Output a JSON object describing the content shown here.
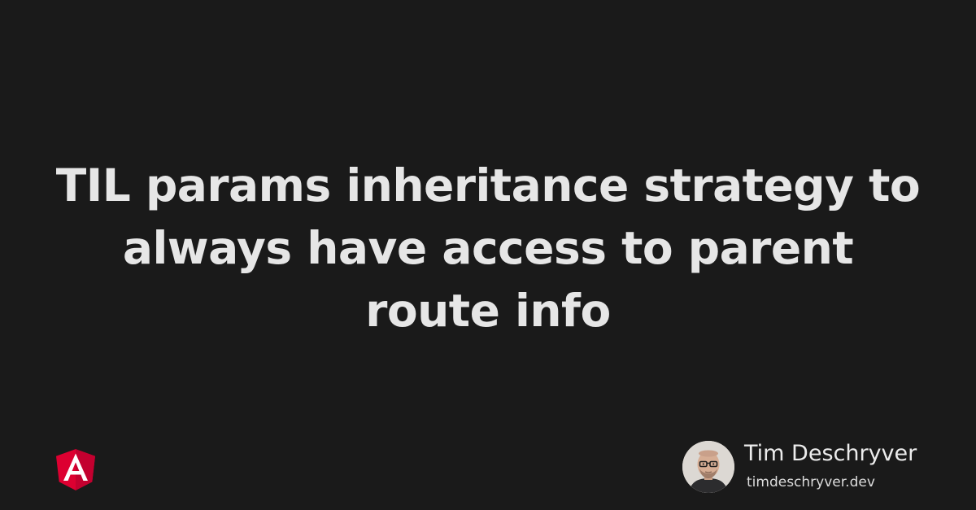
{
  "post": {
    "title": "TIL params inheritance strategy to always have access to parent route info"
  },
  "author": {
    "name": "Tim Deschryver",
    "website": "timdeschryver.dev"
  },
  "icons": {
    "logo": "angular-icon",
    "avatar": "author-avatar"
  },
  "colors": {
    "background": "#1a1a1a",
    "text": "#e6e6e6",
    "angular_red": "#dd0031",
    "angular_dark_red": "#c3002f"
  }
}
